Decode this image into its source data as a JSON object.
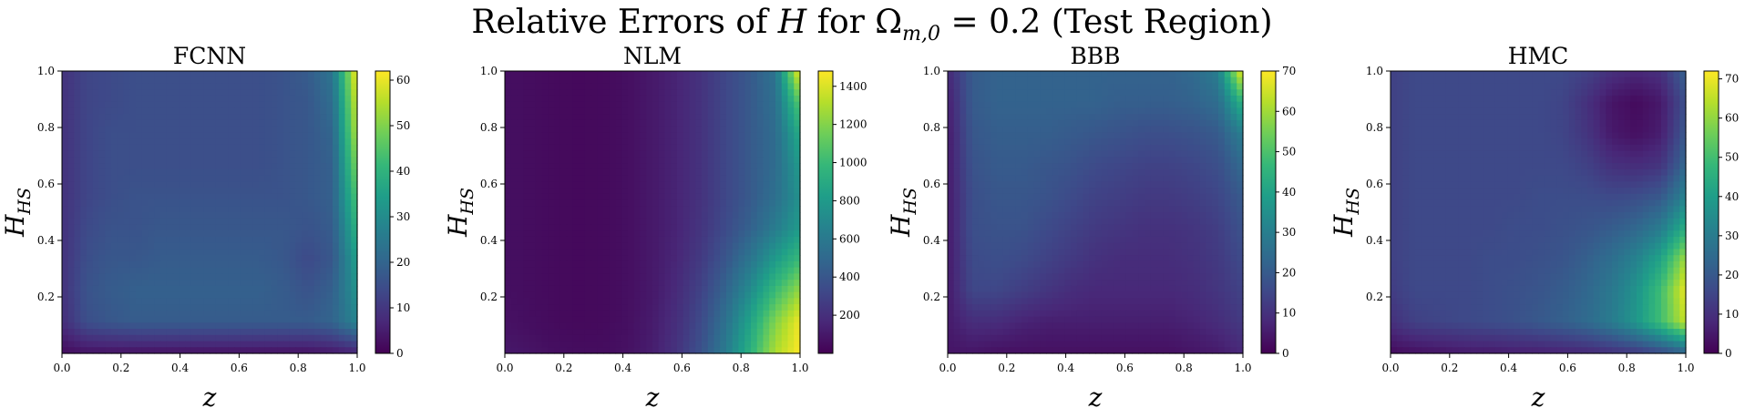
{
  "figure": {
    "title_prefix": "Relative Errors of ",
    "title_var": "H",
    "title_mid": " for ",
    "title_omega": "Ω",
    "title_omega_sub": "m,0",
    "title_suffix": " = 0.2 (Test Region)"
  },
  "colormap": {
    "name": "viridis",
    "stops": [
      "#440154",
      "#482878",
      "#3e4989",
      "#31688e",
      "#26828e",
      "#1f9e89",
      "#35b779",
      "#6ece58",
      "#b5de2b",
      "#fde725"
    ]
  },
  "chart_data": [
    {
      "type": "heatmap",
      "title": "FCNN",
      "xlabel": "z",
      "ylabel_main": "H",
      "ylabel_sub": "HS",
      "xlim": [
        0,
        1
      ],
      "ylim": [
        0,
        1
      ],
      "xticks": [
        "0.0",
        "0.2",
        "0.4",
        "0.6",
        "0.8",
        "1.0"
      ],
      "yticks": [
        "0.2",
        "0.4",
        "0.6",
        "0.8",
        "1.0"
      ],
      "colorbar": {
        "min": 0,
        "max": 62,
        "ticks": [
          "0",
          "10",
          "20",
          "30",
          "40",
          "50",
          "60"
        ]
      },
      "grid_z_rows_top_to_bottom": [
        [
          9,
          13,
          14,
          15,
          15,
          15,
          15,
          15,
          15,
          16,
          18,
          24,
          62
        ],
        [
          9,
          13,
          14,
          15,
          15,
          15,
          15,
          15,
          15,
          16,
          17,
          22,
          58
        ],
        [
          9,
          13,
          15,
          15,
          15,
          15,
          15,
          15,
          15,
          16,
          17,
          20,
          55
        ],
        [
          9,
          13,
          15,
          15,
          15,
          15,
          15,
          15,
          15,
          16,
          17,
          19,
          50
        ],
        [
          9,
          13,
          15,
          16,
          16,
          16,
          16,
          16,
          16,
          16,
          17,
          19,
          45
        ],
        [
          9,
          14,
          16,
          16,
          17,
          17,
          17,
          17,
          17,
          17,
          16,
          18,
          40
        ],
        [
          9,
          15,
          17,
          17,
          18,
          18,
          18,
          18,
          18,
          17,
          14,
          17,
          35
        ],
        [
          9,
          16,
          18,
          19,
          19,
          19,
          19,
          19,
          19,
          18,
          16,
          19,
          32
        ],
        [
          8,
          15,
          17,
          18,
          18,
          18,
          18,
          18,
          18,
          18,
          18,
          20,
          28
        ],
        [
          2,
          3,
          3,
          3,
          3,
          3,
          3,
          3,
          3,
          3,
          3,
          4,
          6
        ]
      ]
    },
    {
      "type": "heatmap",
      "title": "NLM",
      "xlabel": "z",
      "ylabel_main": "H",
      "ylabel_sub": "HS",
      "xlim": [
        0,
        1
      ],
      "ylim": [
        0,
        1
      ],
      "xticks": [
        "0.0",
        "0.2",
        "0.4",
        "0.6",
        "0.8",
        "1.0"
      ],
      "yticks": [
        "0.2",
        "0.4",
        "0.6",
        "0.8",
        "1.0"
      ],
      "colorbar": {
        "min": 0,
        "max": 1480,
        "ticks": [
          "200",
          "400",
          "600",
          "800",
          "1000",
          "1200",
          "1400"
        ]
      },
      "grid_z_rows_top_to_bottom": [
        [
          60,
          50,
          40,
          35,
          40,
          60,
          100,
          150,
          220,
          320,
          420,
          560,
          1480
        ],
        [
          60,
          50,
          40,
          35,
          40,
          60,
          100,
          150,
          220,
          320,
          420,
          540,
          1100
        ],
        [
          60,
          50,
          40,
          35,
          40,
          60,
          100,
          150,
          220,
          320,
          420,
          520,
          900
        ],
        [
          60,
          50,
          40,
          35,
          40,
          60,
          100,
          150,
          220,
          320,
          420,
          520,
          800
        ],
        [
          60,
          50,
          40,
          35,
          40,
          60,
          100,
          150,
          220,
          320,
          420,
          540,
          750
        ],
        [
          60,
          50,
          40,
          35,
          40,
          60,
          100,
          150,
          230,
          340,
          460,
          620,
          800
        ],
        [
          60,
          50,
          40,
          35,
          40,
          60,
          100,
          160,
          260,
          400,
          580,
          800,
          1000
        ],
        [
          60,
          50,
          40,
          35,
          40,
          60,
          100,
          180,
          300,
          480,
          720,
          1000,
          1250
        ],
        [
          70,
          55,
          40,
          35,
          40,
          60,
          110,
          200,
          340,
          560,
          860,
          1200,
          1450
        ],
        [
          100,
          80,
          60,
          50,
          50,
          70,
          120,
          220,
          380,
          620,
          950,
          1300,
          1480
        ]
      ]
    },
    {
      "type": "heatmap",
      "title": "BBB",
      "xlabel": "z",
      "ylabel_main": "H",
      "ylabel_sub": "HS",
      "xlim": [
        0,
        1
      ],
      "ylim": [
        0,
        1
      ],
      "xticks": [
        "0.0",
        "0.2",
        "0.4",
        "0.6",
        "0.8",
        "1.0"
      ],
      "yticks": [
        "0.2",
        "0.4",
        "0.6",
        "0.8",
        "1.0"
      ],
      "colorbar": {
        "min": 0,
        "max": 70,
        "ticks": [
          "0",
          "10",
          "20",
          "30",
          "40",
          "50",
          "60",
          "70"
        ]
      },
      "grid_z_rows_top_to_bottom": [
        [
          8,
          20,
          22,
          22,
          22,
          22,
          22,
          22,
          22,
          22,
          24,
          30,
          70
        ],
        [
          6,
          20,
          22,
          22,
          22,
          22,
          22,
          21,
          21,
          21,
          22,
          25,
          45
        ],
        [
          5,
          19,
          21,
          21,
          21,
          20,
          19,
          18,
          17,
          17,
          18,
          20,
          30
        ],
        [
          5,
          18,
          20,
          20,
          19,
          18,
          16,
          15,
          14,
          14,
          15,
          17,
          24
        ],
        [
          5,
          17,
          19,
          19,
          18,
          16,
          14,
          13,
          12,
          12,
          13,
          15,
          20
        ],
        [
          5,
          17,
          18,
          18,
          16,
          14,
          12,
          11,
          10,
          10,
          11,
          13,
          18
        ],
        [
          5,
          16,
          17,
          16,
          14,
          12,
          10,
          9,
          9,
          9,
          10,
          12,
          16
        ],
        [
          5,
          15,
          15,
          13,
          11,
          9,
          8,
          8,
          8,
          8,
          9,
          11,
          14
        ],
        [
          5,
          9,
          9,
          7,
          6,
          6,
          6,
          6,
          6,
          6,
          7,
          9,
          12
        ],
        [
          4,
          4,
          3,
          3,
          3,
          3,
          3,
          3,
          3,
          3,
          4,
          5,
          8
        ]
      ]
    },
    {
      "type": "heatmap",
      "title": "HMC",
      "xlabel": "z",
      "ylabel_main": "H",
      "ylabel_sub": "HS",
      "xlim": [
        0,
        1
      ],
      "ylim": [
        0,
        1
      ],
      "xticks": [
        "0.0",
        "0.2",
        "0.4",
        "0.6",
        "0.8",
        "1.0"
      ],
      "yticks": [
        "0.2",
        "0.4",
        "0.6",
        "0.8",
        "1.0"
      ],
      "colorbar": {
        "min": 0,
        "max": 72,
        "ticks": [
          "0",
          "10",
          "20",
          "30",
          "40",
          "50",
          "60",
          "70"
        ]
      },
      "grid_z_rows_top_to_bottom": [
        [
          14,
          16,
          16,
          16,
          16,
          16,
          16,
          16,
          14,
          10,
          8,
          10,
          22
        ],
        [
          14,
          16,
          16,
          16,
          16,
          16,
          16,
          15,
          10,
          4,
          2,
          5,
          18
        ],
        [
          14,
          16,
          16,
          16,
          16,
          16,
          16,
          15,
          11,
          5,
          3,
          6,
          20
        ],
        [
          14,
          16,
          16,
          16,
          16,
          16,
          16,
          16,
          14,
          10,
          9,
          11,
          24
        ],
        [
          14,
          16,
          16,
          16,
          16,
          16,
          17,
          17,
          17,
          16,
          17,
          20,
          32
        ],
        [
          14,
          16,
          16,
          16,
          16,
          17,
          17,
          18,
          19,
          21,
          24,
          30,
          45
        ],
        [
          14,
          16,
          16,
          16,
          17,
          17,
          18,
          19,
          22,
          26,
          32,
          42,
          62
        ],
        [
          13,
          16,
          16,
          16,
          17,
          18,
          19,
          21,
          24,
          29,
          37,
          50,
          70
        ],
        [
          10,
          14,
          15,
          16,
          17,
          18,
          20,
          22,
          25,
          30,
          38,
          50,
          66
        ],
        [
          2,
          3,
          4,
          5,
          5,
          6,
          6,
          7,
          8,
          10,
          12,
          16,
          22
        ]
      ]
    }
  ]
}
